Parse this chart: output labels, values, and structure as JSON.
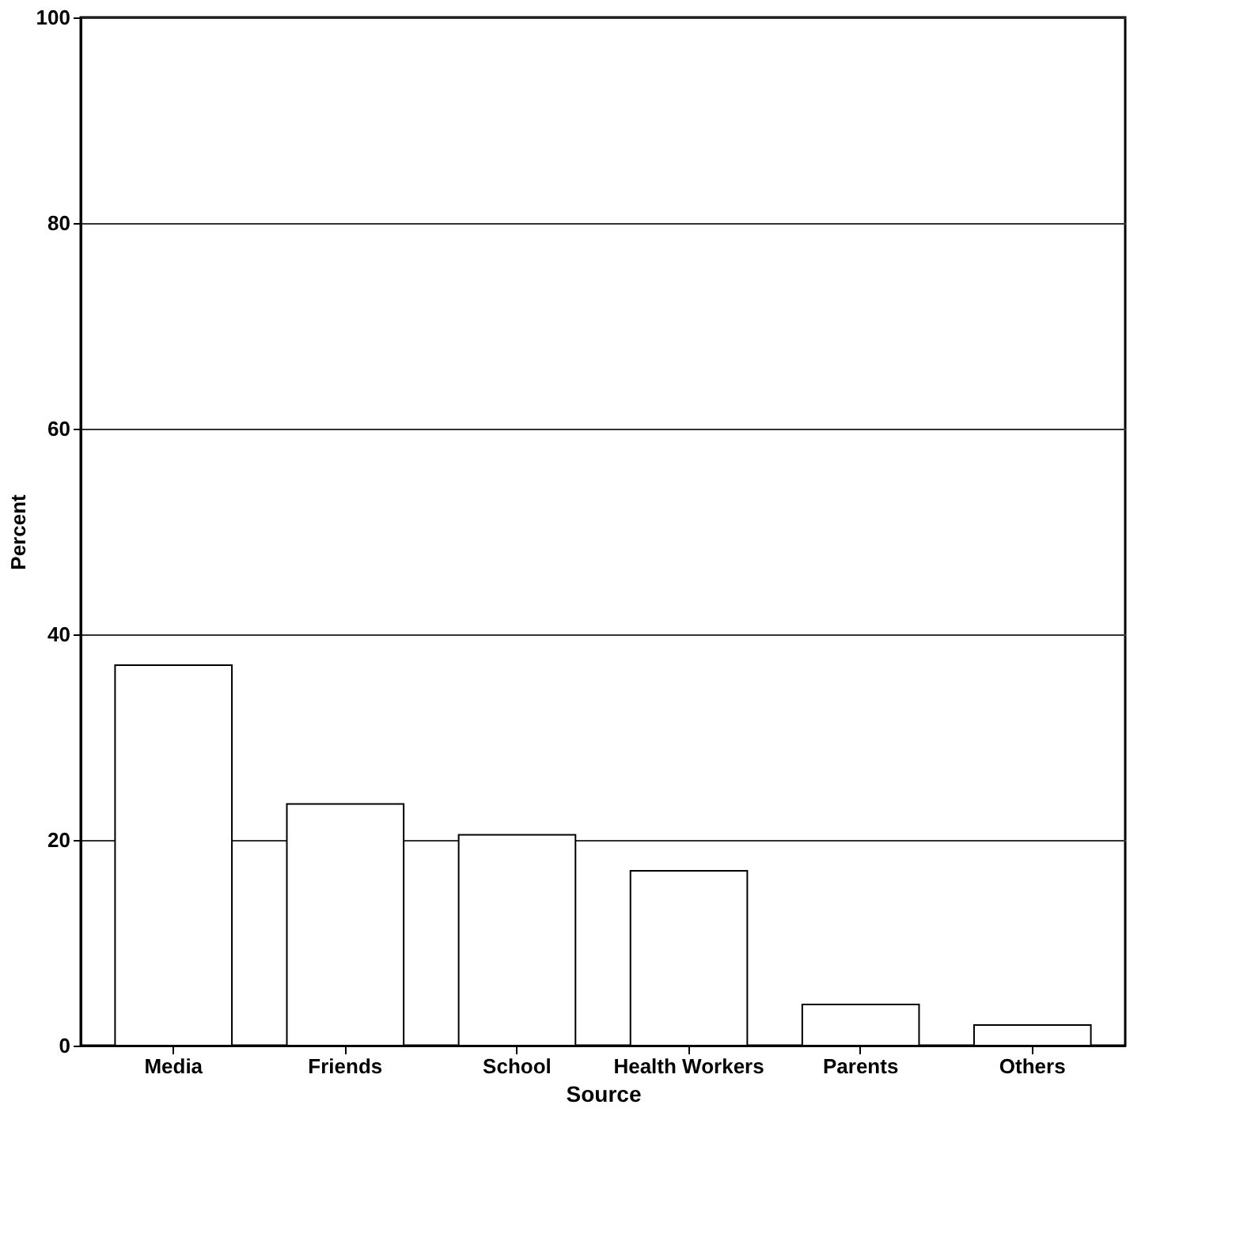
{
  "chart_data": {
    "type": "bar",
    "xlabel": "Source",
    "ylabel": "Percent",
    "categories": [
      "Media",
      "Friends",
      "School",
      "Health  Workers",
      "Parents",
      "Others"
    ],
    "values": [
      37,
      23.5,
      20.5,
      17,
      4,
      2
    ],
    "color": "#ffffff",
    "ylim": [
      0,
      100
    ],
    "yticks": [
      0,
      20,
      40,
      60,
      80,
      100
    ],
    "grid": "y"
  }
}
